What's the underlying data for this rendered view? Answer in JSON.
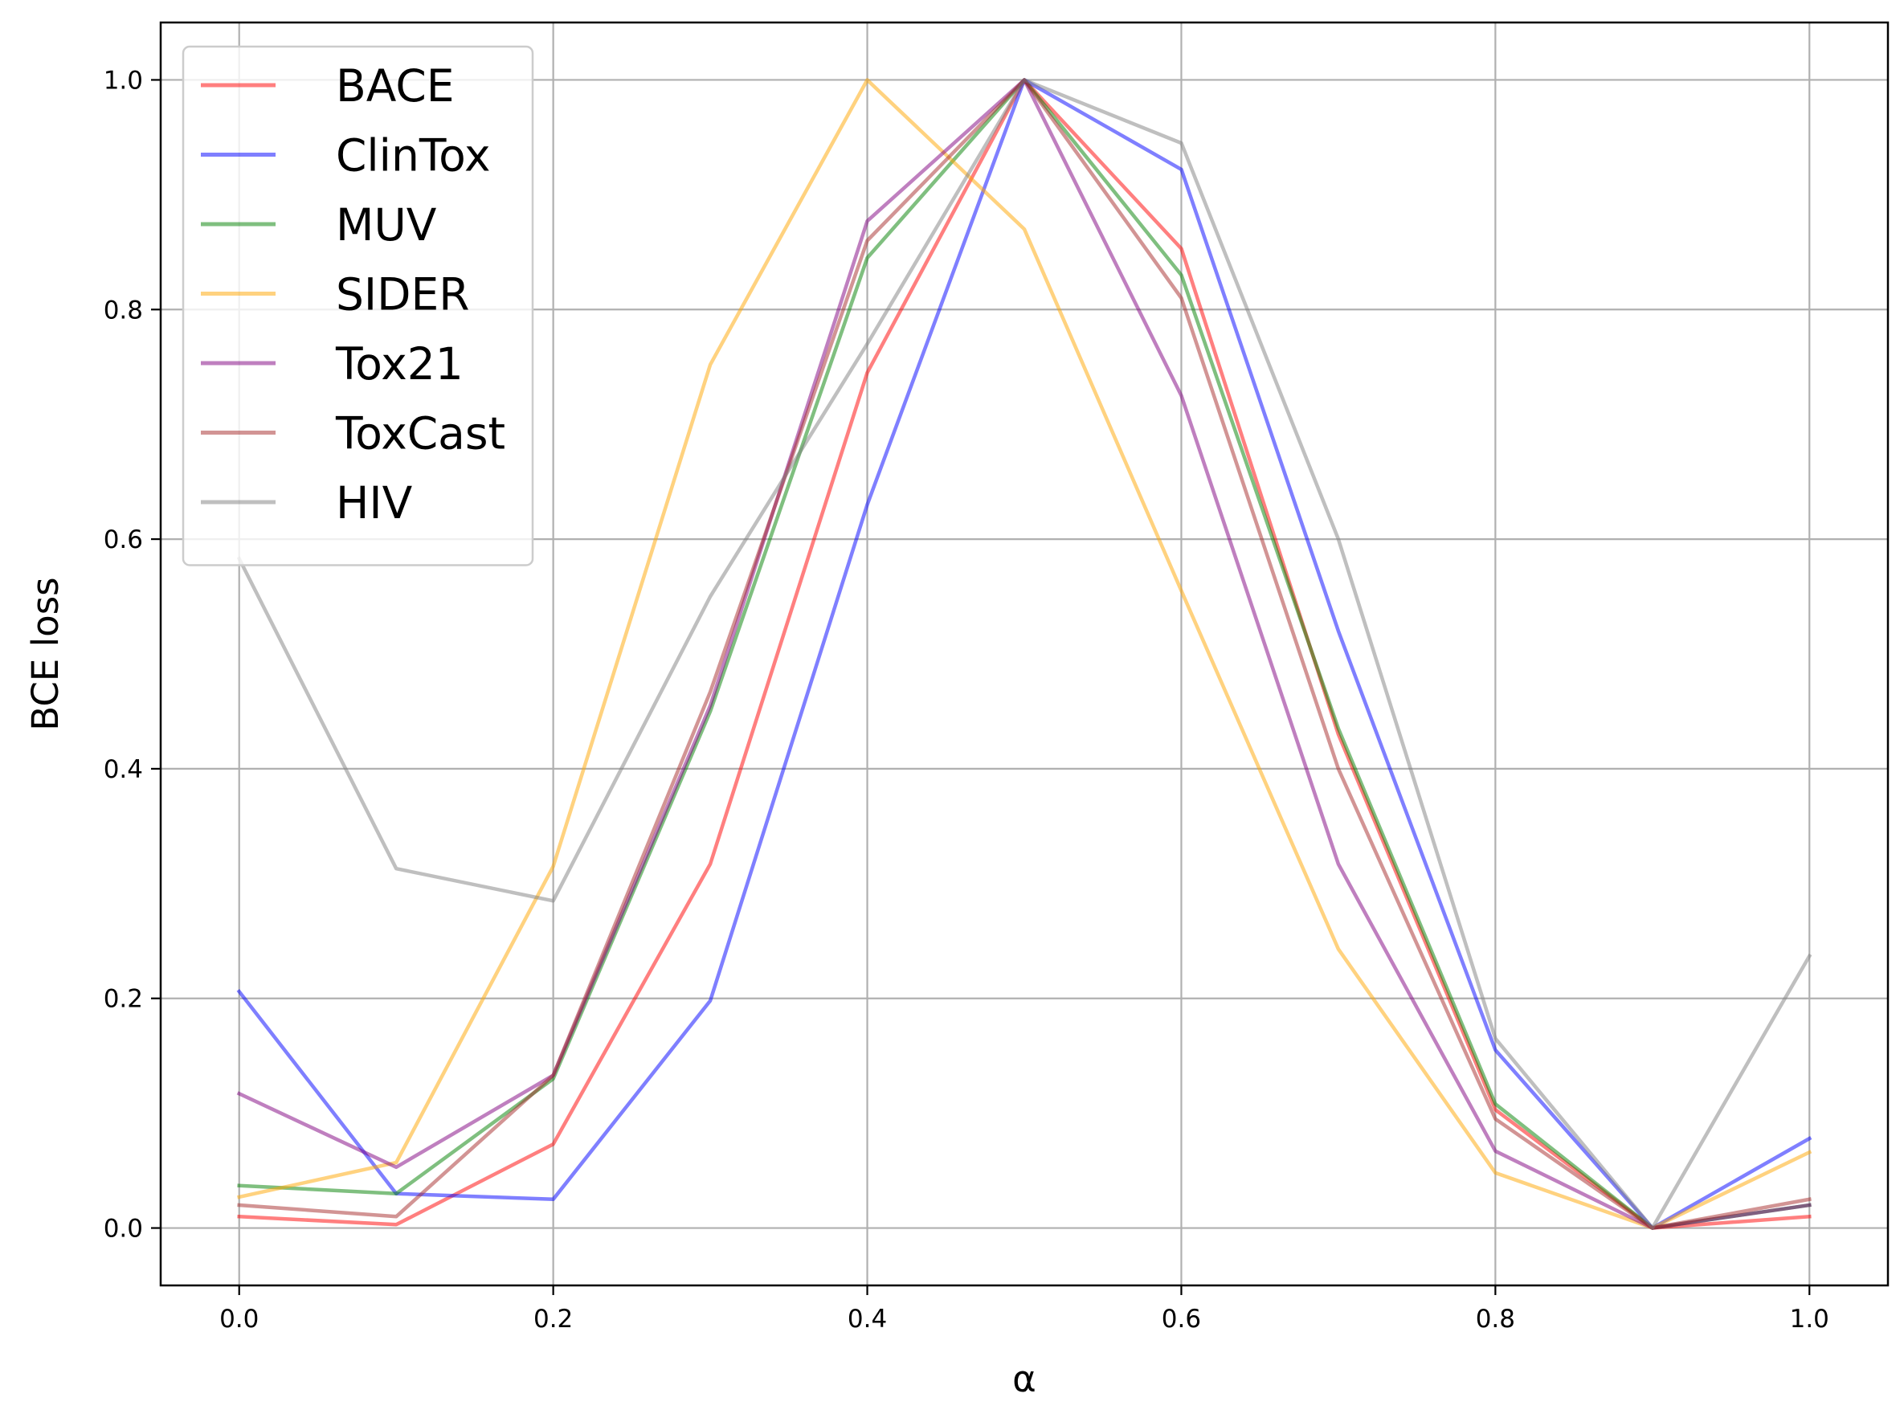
{
  "chart_data": {
    "type": "line",
    "title": "",
    "xlabel": "α",
    "ylabel": "BCE loss",
    "x": [
      0.0,
      0.1,
      0.2,
      0.3,
      0.4,
      0.5,
      0.6,
      0.7,
      0.8,
      0.9,
      1.0
    ],
    "xlim": [
      -0.05,
      1.05
    ],
    "ylim": [
      -0.05,
      1.05
    ],
    "xticks": [
      "0.0",
      "0.2",
      "0.4",
      "0.6",
      "0.8",
      "1.0"
    ],
    "yticks": [
      "0.0",
      "0.2",
      "0.4",
      "0.6",
      "0.8",
      "1.0"
    ],
    "grid": true,
    "legend_position": "upper-left",
    "series": [
      {
        "name": "BACE",
        "color": "#ff0000",
        "values": [
          0.01,
          0.003,
          0.073,
          0.317,
          0.745,
          1.0,
          0.853,
          0.43,
          0.103,
          0.0,
          0.01
        ]
      },
      {
        "name": "ClinTox",
        "color": "#0000ff",
        "values": [
          0.206,
          0.03,
          0.025,
          0.198,
          0.63,
          1.0,
          0.922,
          0.52,
          0.155,
          0.0,
          0.078
        ]
      },
      {
        "name": "MUV",
        "color": "#008000",
        "values": [
          0.037,
          0.03,
          0.13,
          0.45,
          0.845,
          1.0,
          0.83,
          0.435,
          0.108,
          0.0,
          0.02
        ]
      },
      {
        "name": "SIDER",
        "color": "#ffa500",
        "values": [
          0.027,
          0.057,
          0.315,
          0.752,
          1.0,
          0.87,
          0.555,
          0.243,
          0.048,
          0.0,
          0.066
        ]
      },
      {
        "name": "Tox21",
        "color": "#800080",
        "values": [
          0.117,
          0.053,
          0.133,
          0.455,
          0.877,
          1.0,
          0.725,
          0.317,
          0.067,
          0.0,
          0.02
        ]
      },
      {
        "name": "ToxCast",
        "color": "#a52a2a",
        "values": [
          0.02,
          0.01,
          0.133,
          0.467,
          0.86,
          1.0,
          0.81,
          0.4,
          0.095,
          0.0,
          0.025
        ]
      },
      {
        "name": "HIV",
        "color": "#808080",
        "values": [
          0.583,
          0.313,
          0.285,
          0.55,
          0.77,
          1.0,
          0.945,
          0.6,
          0.165,
          0.0,
          0.237
        ]
      }
    ]
  }
}
